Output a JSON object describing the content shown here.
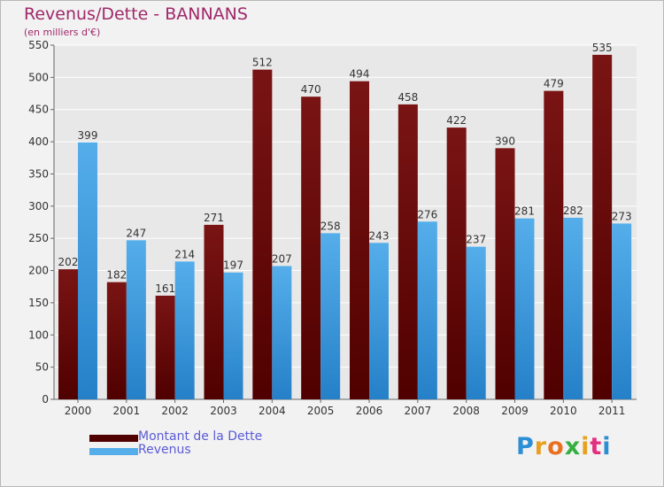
{
  "title": "Revenus/Dette - BANNANS",
  "subtitle": "(en milliers d'€)",
  "logo": {
    "text": "Proxiti",
    "letter_colors": [
      "#2b8fd6",
      "#e8a020",
      "#e87020",
      "#35b040",
      "#e8a020",
      "#e23080",
      "#2b8fd6"
    ]
  },
  "colors": {
    "debt_bar": "#7a1414",
    "debt_bar_dark": "#500000",
    "revenue_bar": "#55aeea",
    "revenue_bar_dark": "#2580c8",
    "label_text": "#333333",
    "grid": "#ffffff",
    "plot_bg": "#e8e8e8"
  },
  "legend": {
    "debt_label": "Montant de la Dette",
    "revenue_label": "Revenus"
  },
  "chart_data": {
    "type": "bar",
    "title": "Revenus/Dette - BANNANS",
    "subtitle": "(en milliers d'€)",
    "categories": [
      "2000",
      "2001",
      "2002",
      "2003",
      "2004",
      "2005",
      "2006",
      "2007",
      "2008",
      "2009",
      "2010",
      "2011"
    ],
    "series": [
      {
        "name": "Montant de la Dette",
        "values": [
          202,
          182,
          161,
          271,
          512,
          470,
          494,
          458,
          422,
          390,
          479,
          535
        ]
      },
      {
        "name": "Revenus",
        "values": [
          399,
          247,
          214,
          197,
          207,
          258,
          243,
          276,
          237,
          281,
          282,
          273
        ]
      }
    ],
    "yticks": [
      0,
      50,
      100,
      150,
      200,
      250,
      300,
      350,
      400,
      450,
      500,
      550
    ],
    "ylim": [
      0,
      550
    ],
    "grid": true,
    "legend_position": "bottom-left"
  }
}
